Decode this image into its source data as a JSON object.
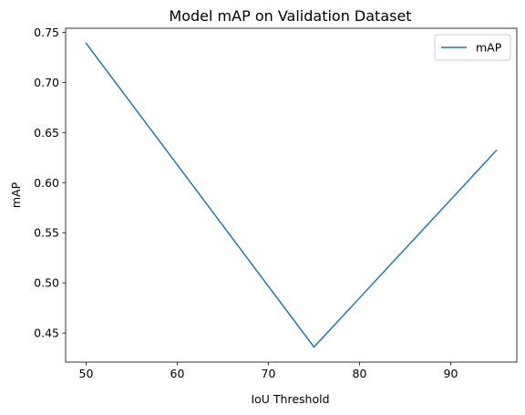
{
  "chart_data": {
    "type": "line",
    "title": "Model mAP on Validation Dataset",
    "xlabel": "IoU Threshold",
    "ylabel": "mAP",
    "x": [
      50,
      75,
      95
    ],
    "series": [
      {
        "name": "mAP",
        "values": [
          0.739,
          0.436,
          0.632
        ],
        "color": "#1f77b4"
      }
    ],
    "xlim": [
      47.75,
      97.25
    ],
    "ylim": [
      0.421,
      0.754
    ],
    "xticks": [
      50,
      60,
      70,
      80,
      90
    ],
    "xtick_labels": [
      "50",
      "60",
      "70",
      "80",
      "90"
    ],
    "yticks": [
      0.45,
      0.5,
      0.55,
      0.6,
      0.65,
      0.7,
      0.75
    ],
    "ytick_labels": [
      "0.45",
      "0.50",
      "0.55",
      "0.60",
      "0.65",
      "0.70",
      "0.75"
    ],
    "grid": false,
    "legend": {
      "position": "top-right",
      "entries": [
        "mAP"
      ]
    }
  }
}
